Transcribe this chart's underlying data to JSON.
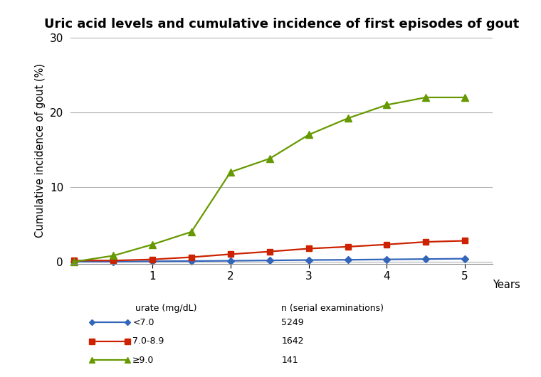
{
  "title": "Uric acid levels and cumulative incidence of first episodes of gout",
  "ylabel": "Cumulative incidence of gout (%)",
  "xlabel": "Years",
  "ylim": [
    -0.3,
    30
  ],
  "yticks": [
    0,
    10,
    20,
    30
  ],
  "xlim": [
    -0.05,
    5.35
  ],
  "xticks": [
    1,
    2,
    3,
    4,
    5
  ],
  "series": [
    {
      "label": "<7.0",
      "n": "5249",
      "color": "#3366bb",
      "marker": "D",
      "markersize": 5,
      "x": [
        0,
        0.5,
        1.0,
        1.5,
        2.0,
        2.5,
        3.0,
        3.5,
        4.0,
        4.5,
        5.0
      ],
      "y": [
        0,
        0.0,
        0.05,
        0.08,
        0.12,
        0.17,
        0.22,
        0.25,
        0.3,
        0.35,
        0.4
      ]
    },
    {
      "label": "7.0-8.9",
      "n": "1642",
      "color": "#cc2200",
      "marker": "s",
      "markersize": 6,
      "x": [
        0,
        0.5,
        1.0,
        1.5,
        2.0,
        2.5,
        3.0,
        3.5,
        4.0,
        4.5,
        5.0
      ],
      "y": [
        0.15,
        0.15,
        0.3,
        0.6,
        1.0,
        1.35,
        1.75,
        2.0,
        2.3,
        2.65,
        2.8
      ]
    },
    {
      "label": "≥9.0",
      "n": "141",
      "color": "#669900",
      "marker": "^",
      "markersize": 7,
      "x": [
        0,
        0.5,
        1.0,
        1.5,
        2.0,
        2.5,
        3.0,
        3.5,
        4.0,
        4.5,
        5.0
      ],
      "y": [
        0,
        0.8,
        2.3,
        4.0,
        12.0,
        13.8,
        17.0,
        19.2,
        21.0,
        22.0,
        22.0
      ]
    }
  ],
  "background_color": "#ffffff",
  "grid_color": "#b0b0b0",
  "title_fontsize": 13,
  "axis_fontsize": 10.5,
  "tick_fontsize": 11,
  "legend_col1_header": "urate (mg/dL)",
  "legend_col2_header": "n (serial examinations)"
}
